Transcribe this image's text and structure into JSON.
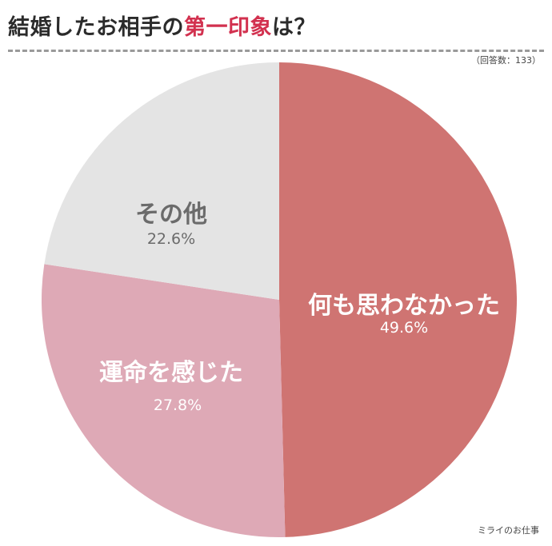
{
  "title": {
    "prefix": "結婚したお相手の",
    "highlight": "第一印象",
    "suffix": "は？"
  },
  "respondents": "（回答数：133）",
  "credit": "ミライのお仕事",
  "chart_data": {
    "type": "pie",
    "title": "結婚したお相手の第一印象は？",
    "start_angle_deg": 0,
    "direction": "clockwise",
    "slices": [
      {
        "label": "何も思わなかった",
        "pct_label": "49.6%",
        "value": 49.6,
        "color": "#cf7472",
        "text_color": "#ffffff",
        "pct_color": "#ffffff"
      },
      {
        "label": "運命を感じた",
        "pct_label": "27.8%",
        "value": 27.8,
        "color": "#dea9b6",
        "text_color": "#ffffff",
        "pct_color": "#ffffff"
      },
      {
        "label": "その他",
        "pct_label": "22.6%",
        "value": 22.6,
        "color": "#e4e4e4",
        "text_color": "#6b6b6b",
        "pct_color": "#6b6b6b"
      }
    ]
  }
}
